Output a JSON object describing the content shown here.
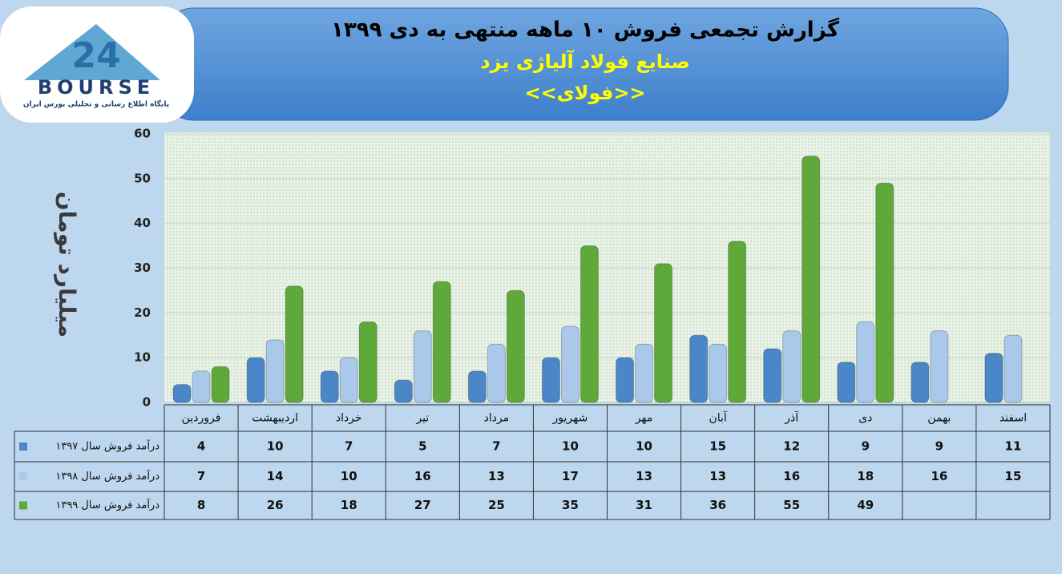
{
  "logo": {
    "mark": "24",
    "text": "BOURSE",
    "subtitle": "پایگاه اطلاع رسانی و تحلیلی بورس ایران"
  },
  "chart_data": {
    "type": "bar",
    "title": "گزارش تجمعی فروش ۱۰ ماهه منتهی به دی ۱۳۹۹",
    "subtitle": "صنایع فولاد آلیاژی یزد",
    "subtitle2": "<<فولای>>",
    "ylabel": "میلیارد تومان",
    "categories": [
      "فروردین",
      "اردیبهشت",
      "خرداد",
      "تیر",
      "مرداد",
      "شهریور",
      "مهر",
      "آبان",
      "آذر",
      "دی",
      "بهمن",
      "اسفند"
    ],
    "series": [
      {
        "name": "درآمد فروش سال ۱۳۹۷",
        "color": "#4a86c8",
        "values": [
          4,
          10,
          7,
          5,
          7,
          10,
          10,
          15,
          12,
          9,
          9,
          11
        ]
      },
      {
        "name": "درآمد فروش سال ۱۳۹۸",
        "color": "#a9c8ea",
        "values": [
          7,
          14,
          10,
          16,
          13,
          17,
          13,
          13,
          16,
          18,
          16,
          15
        ]
      },
      {
        "name": "درآمد فروش سال ۱۳۹۹",
        "color": "#5fa83a",
        "values": [
          8,
          26,
          18,
          27,
          25,
          35,
          31,
          36,
          55,
          49,
          null,
          null
        ]
      }
    ],
    "ylim": [
      0,
      60
    ],
    "yticks": [
      0,
      10,
      20,
      30,
      40,
      50,
      60
    ],
    "grid": true
  }
}
